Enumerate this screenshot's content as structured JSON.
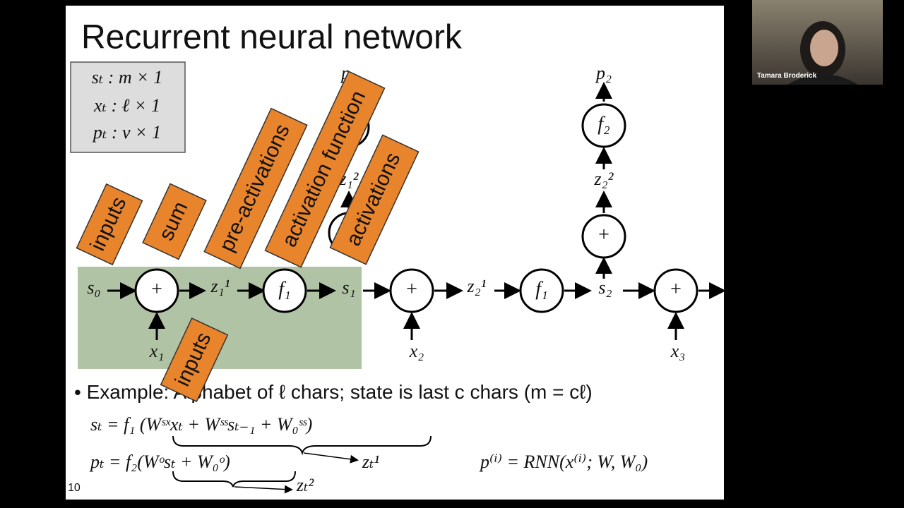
{
  "call": {
    "participant_name": "Tamara Broderick"
  },
  "slide": {
    "title": "Recurrent neural network",
    "page_number": "10",
    "dims": [
      "sₜ : m × 1",
      "xₜ : ℓ × 1",
      "pₜ : v × 1"
    ],
    "diagram": {
      "operators": [
        "+",
        "f₁",
        "+",
        "f₁",
        "+",
        "+",
        "f₂",
        "f₁"
      ],
      "labels": [
        "s₀",
        "z₁¹",
        "s₁",
        "z₂¹",
        "s₂",
        "x₁",
        "x₂",
        "x₃",
        "p₁",
        "z₁²",
        "z₂²",
        "p₂"
      ]
    },
    "sticky_notes": [
      "inputs",
      "sum",
      "pre-activations",
      "activation function",
      "activations",
      "inputs"
    ],
    "bullet": "Example: Alphabet of ℓ chars; state is last c chars (m = cℓ)",
    "equations": [
      "sₜ = f₁ (Wˢˣxₜ + Wˢˢsₜ₋₁ + W₀ˢˢ)",
      "pₜ = f₂(Wᵒsₜ + W₀ᵒ)",
      "p⁽ⁱ⁾ = RNN(x⁽ⁱ⁾; W, W₀)"
    ],
    "annotations": [
      "zₜ¹",
      "zₜ²"
    ]
  }
}
